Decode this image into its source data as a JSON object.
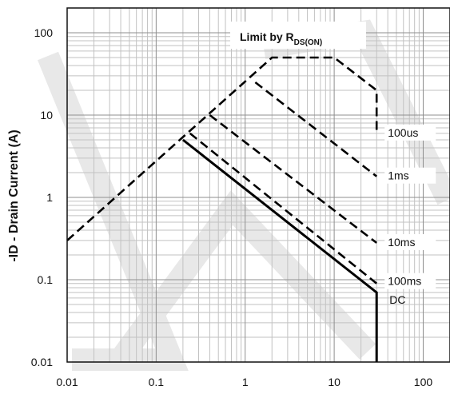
{
  "chart_data": {
    "type": "line",
    "x_scale": "log",
    "y_scale": "log",
    "xlim": [
      0.01,
      200
    ],
    "ylim": [
      0.01,
      200
    ],
    "x_ticks": [
      "0.01",
      "0.1",
      "1",
      "10",
      "100"
    ],
    "y_ticks": [
      "100",
      "10",
      "1",
      "0.1",
      "0.01"
    ],
    "ylabel": "-ID - Drain Current (A)",
    "xlabel": "",
    "title": "",
    "grid": true,
    "rdson_label": {
      "main": "Limit by R",
      "sub": "DS(ON)"
    },
    "series": [
      {
        "name": "100us",
        "style": "dashed",
        "x": [
          0.01,
          2,
          10,
          30,
          30
        ],
        "y": [
          0.3,
          50,
          50,
          20,
          6
        ]
      },
      {
        "name": "1ms",
        "style": "dashed",
        "x": [
          1.3,
          30
        ],
        "y": [
          25,
          1.8
        ]
      },
      {
        "name": "10ms",
        "style": "dashed",
        "x": [
          0.4,
          30
        ],
        "y": [
          10,
          0.28
        ]
      },
      {
        "name": "100ms",
        "style": "dashed",
        "x": [
          0.24,
          30
        ],
        "y": [
          6,
          0.09
        ]
      },
      {
        "name": "DC",
        "style": "solid",
        "x": [
          0.2,
          30,
          30
        ],
        "y": [
          5,
          0.07,
          0.01
        ]
      }
    ],
    "colors": {
      "line": "#000000",
      "grid_major": "#8f8f8f",
      "grid_minor": "#c2c2c2",
      "watermark": "#e8e8e8"
    }
  }
}
